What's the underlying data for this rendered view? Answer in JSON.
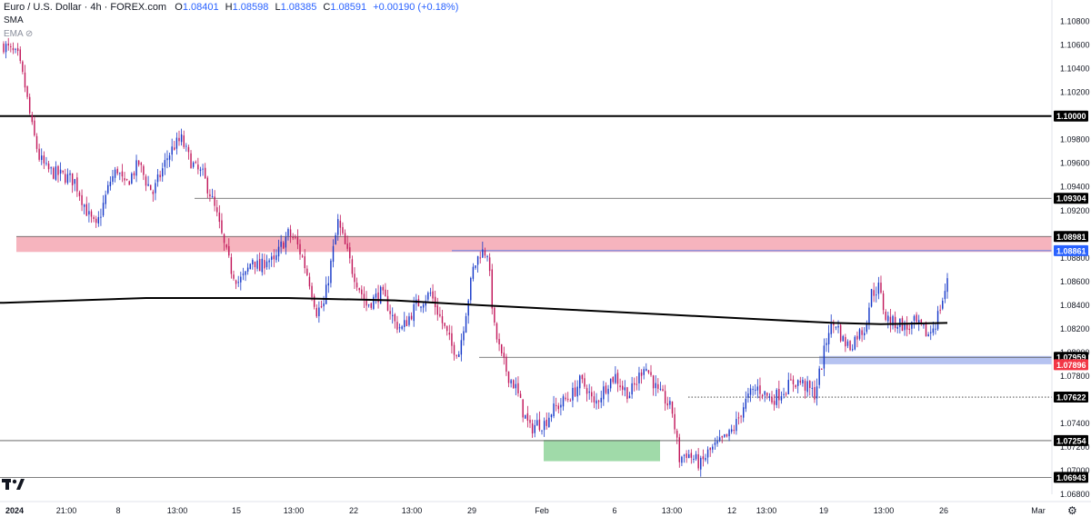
{
  "header": {
    "symbol": "Euro / U.S. Dollar · 4h · FOREX.com",
    "open_label": "O",
    "open": "1.08401",
    "high_label": "H",
    "high": "1.08598",
    "low_label": "L",
    "low": "1.08385",
    "close_label": "C",
    "close": "1.08591",
    "change": "+0.00190 (+0.18%)"
  },
  "indicators": {
    "sma_label": "SMA",
    "ema_label": "EMA"
  },
  "colors": {
    "up": "#1538c8",
    "down": "#c2185b",
    "sma": "#000000",
    "resistance_zone": "#f4a7b3",
    "support_zone_green": "#8fd49a",
    "support_zone_blue": "#a9b8ee",
    "last_price_tag": "#2962ff",
    "red_tag": "#f23645",
    "black_tag": "#000000"
  },
  "chart_data": {
    "type": "candlestick",
    "symbol": "EURUSD",
    "timeframe": "4h",
    "ylim": [
      1.068,
      1.1092
    ],
    "y_ticks": [
      "1.10800",
      "1.10600",
      "1.10400",
      "1.10200",
      "1.09800",
      "1.09600",
      "1.09400",
      "1.09200",
      "1.08800",
      "1.08600",
      "1.08400",
      "1.08200",
      "1.08000",
      "1.07800",
      "1.07400",
      "1.07200",
      "1.07000",
      "1.06800"
    ],
    "x_ticks": [
      "2024",
      "21:00",
      "8",
      "13:00",
      "15",
      "13:00",
      "22",
      "13:00",
      "29",
      "Feb",
      "6",
      "13:00",
      "12",
      "13:00",
      "19",
      "13:00",
      "26",
      "Mar"
    ],
    "horizontal_levels": [
      {
        "label": "1.10000",
        "value": 1.1,
        "style": "thick"
      },
      {
        "label": "1.09304",
        "value": 1.09304,
        "style": "thin"
      },
      {
        "label": "1.08981",
        "value": 1.08981,
        "style": "thin"
      },
      {
        "label": "1.08861",
        "value": 1.08861,
        "style": "blue"
      },
      {
        "label": "1.07959",
        "value": 1.07959,
        "style": "thin"
      },
      {
        "label": "1.07896",
        "value": 1.07896,
        "style": "red-tag"
      },
      {
        "label": "1.07622",
        "value": 1.07622,
        "style": "dotted"
      },
      {
        "label": "1.07254",
        "value": 1.07254,
        "style": "thin"
      },
      {
        "label": "1.06943",
        "value": 1.06943,
        "style": "thin"
      }
    ],
    "zones": [
      {
        "kind": "resistance",
        "from": 1.0885,
        "to": 1.0898
      },
      {
        "kind": "support-green",
        "from": 1.0708,
        "to": 1.0726
      },
      {
        "kind": "support-blue",
        "from": 1.079,
        "to": 1.0797
      }
    ],
    "last_price": "1.08591",
    "close_path": [
      [
        0,
        1.106
      ],
      [
        3,
        1.1055
      ],
      [
        6,
        1.105
      ],
      [
        9,
        1.1025
      ],
      [
        12,
        1.099
      ],
      [
        15,
        1.0965
      ],
      [
        18,
        1.0955
      ],
      [
        21,
        1.0952
      ],
      [
        24,
        1.095
      ],
      [
        27,
        1.0948
      ],
      [
        30,
        1.0945
      ],
      [
        33,
        1.093
      ],
      [
        36,
        1.0915
      ],
      [
        39,
        1.0905
      ],
      [
        42,
        1.0925
      ],
      [
        45,
        1.0945
      ],
      [
        48,
        1.0955
      ],
      [
        51,
        1.094
      ],
      [
        54,
        1.095
      ],
      [
        57,
        1.096
      ],
      [
        60,
        1.0945
      ],
      [
        63,
        1.0935
      ],
      [
        66,
        1.095
      ],
      [
        69,
        1.0965
      ],
      [
        72,
        1.0975
      ],
      [
        75,
        1.098
      ],
      [
        78,
        1.0965
      ],
      [
        81,
        1.0955
      ],
      [
        84,
        1.095
      ],
      [
        87,
        1.0935
      ],
      [
        90,
        1.0915
      ],
      [
        93,
        1.089
      ],
      [
        96,
        1.087
      ],
      [
        99,
        1.086
      ],
      [
        102,
        1.0865
      ],
      [
        105,
        1.088
      ],
      [
        108,
        1.087
      ],
      [
        111,
        1.088
      ],
      [
        114,
        1.0875
      ],
      [
        117,
        1.089
      ],
      [
        120,
        1.09
      ],
      [
        123,
        1.0895
      ],
      [
        126,
        1.088
      ],
      [
        129,
        1.086
      ],
      [
        132,
        1.0835
      ],
      [
        135,
        1.084
      ],
      [
        138,
        1.0875
      ],
      [
        141,
        1.091
      ],
      [
        144,
        1.089
      ],
      [
        147,
        1.087
      ],
      [
        150,
        1.0855
      ],
      [
        153,
        1.084
      ],
      [
        156,
        1.0845
      ],
      [
        159,
        1.085
      ],
      [
        162,
        1.084
      ],
      [
        165,
        1.0825
      ],
      [
        168,
        1.082
      ],
      [
        171,
        1.083
      ],
      [
        174,
        1.084
      ],
      [
        177,
        1.0845
      ],
      [
        180,
        1.085
      ],
      [
        183,
        1.0835
      ],
      [
        186,
        1.082
      ],
      [
        189,
        1.0805
      ],
      [
        192,
        1.08
      ],
      [
        195,
        1.0835
      ],
      [
        198,
        1.087
      ],
      [
        201,
        1.0885
      ],
      [
        204,
        1.0885
      ],
      [
        207,
        1.082
      ],
      [
        210,
        1.0795
      ],
      [
        213,
        1.078
      ],
      [
        216,
        1.077
      ],
      [
        219,
        1.075
      ],
      [
        222,
        1.0735
      ],
      [
        225,
        1.074
      ],
      [
        228,
        1.074
      ],
      [
        231,
        1.075
      ],
      [
        234,
        1.0755
      ],
      [
        237,
        1.076
      ],
      [
        240,
        1.0765
      ],
      [
        243,
        1.0775
      ],
      [
        246,
        1.077
      ],
      [
        249,
        1.0755
      ],
      [
        252,
        1.0765
      ],
      [
        255,
        1.0775
      ],
      [
        258,
        1.078
      ],
      [
        261,
        1.077
      ],
      [
        264,
        1.0765
      ],
      [
        267,
        1.0775
      ],
      [
        270,
        1.079
      ],
      [
        273,
        1.078
      ],
      [
        276,
        1.0765
      ],
      [
        279,
        1.076
      ],
      [
        282,
        1.075
      ],
      [
        285,
        1.071
      ],
      [
        288,
        1.0715
      ],
      [
        291,
        1.071
      ],
      [
        294,
        1.0705
      ],
      [
        297,
        1.0715
      ],
      [
        300,
        1.072
      ],
      [
        303,
        1.0725
      ],
      [
        306,
        1.073
      ],
      [
        309,
        1.074
      ],
      [
        312,
        1.0755
      ],
      [
        315,
        1.0765
      ],
      [
        318,
        1.077
      ],
      [
        321,
        1.0765
      ],
      [
        324,
        1.076
      ],
      [
        327,
        1.0765
      ],
      [
        330,
        1.077
      ],
      [
        333,
        1.0775
      ],
      [
        336,
        1.0775
      ],
      [
        339,
        1.077
      ],
      [
        342,
        1.0765
      ],
      [
        345,
        1.079
      ],
      [
        348,
        1.082
      ],
      [
        351,
        1.0825
      ],
      [
        354,
        1.081
      ],
      [
        357,
        1.0805
      ],
      [
        360,
        1.0815
      ],
      [
        363,
        1.082
      ],
      [
        366,
        1.085
      ],
      [
        369,
        1.0855
      ],
      [
        372,
        1.083
      ],
      [
        375,
        1.0825
      ],
      [
        378,
        1.0825
      ],
      [
        381,
        1.082
      ],
      [
        384,
        1.0825
      ],
      [
        387,
        1.082
      ],
      [
        390,
        1.0815
      ],
      [
        393,
        1.0825
      ],
      [
        396,
        1.0845
      ],
      [
        398,
        1.08591
      ]
    ],
    "sma_path": [
      [
        0,
        1.0842
      ],
      [
        60,
        1.0846
      ],
      [
        120,
        1.0846
      ],
      [
        165,
        1.0844
      ],
      [
        200,
        1.084
      ],
      [
        240,
        1.0836
      ],
      [
        280,
        1.0832
      ],
      [
        320,
        1.0828
      ],
      [
        350,
        1.0825
      ],
      [
        370,
        1.0824
      ],
      [
        398,
        1.0825
      ]
    ],
    "n_bars": 399
  }
}
